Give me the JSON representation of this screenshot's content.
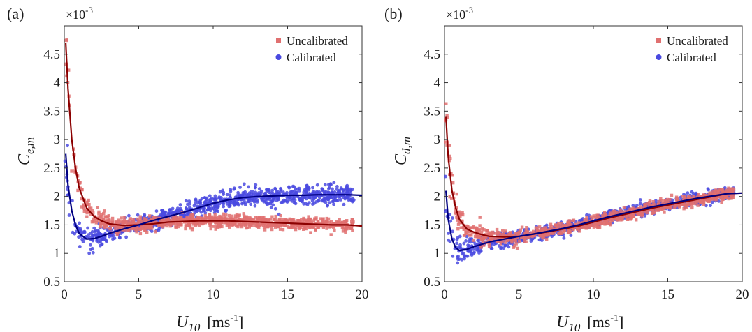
{
  "figure": {
    "panels": [
      {
        "label": "(a)",
        "multiplier": "×10",
        "multiplier_exp": "-3",
        "ylabel_var": "C",
        "ylabel_sub": "e,m",
        "xlabel_var": "U",
        "xlabel_sub": "10",
        "xlabel_unit_open": "[ms",
        "xlabel_unit_exp": "-1",
        "xlabel_unit_close": "]"
      },
      {
        "label": "(b)",
        "multiplier": "×10",
        "multiplier_exp": "-3",
        "ylabel_var": "C",
        "ylabel_sub": "d,m",
        "xlabel_var": "U",
        "xlabel_sub": "10",
        "xlabel_unit_open": "[ms",
        "xlabel_unit_exp": "-1",
        "xlabel_unit_close": "]"
      }
    ],
    "colors": {
      "uncalibrated_points": "#e07070",
      "uncalibrated_fit": "#8b0000",
      "calibrated_points": "#4a4ae0",
      "calibrated_fit": "#000080"
    }
  },
  "chart_data": [
    {
      "type": "scatter",
      "xlim": [
        0,
        20
      ],
      "ylim": [
        0.5,
        5
      ],
      "y_scale_note": "×10^-3",
      "xticks": [
        "0",
        "5",
        "10",
        "15",
        "20"
      ],
      "yticks": [
        "0.5",
        "1",
        "1.5",
        "2",
        "2.5",
        "3",
        "3.5",
        "4",
        "4.5"
      ],
      "legend_position": "top-right",
      "series": [
        {
          "name": "Uncalibrated",
          "marker": "square",
          "fit": {
            "x": [
              0.1,
              0.25,
              0.5,
              0.75,
              1,
              1.5,
              2,
              2.5,
              3,
              4,
              5,
              6,
              7,
              8,
              9,
              10,
              11,
              12,
              13,
              14,
              15,
              16,
              17,
              18,
              19,
              20
            ],
            "y": [
              4.7,
              3.9,
              3.0,
              2.5,
              2.15,
              1.8,
              1.65,
              1.57,
              1.52,
              1.49,
              1.5,
              1.52,
              1.55,
              1.56,
              1.57,
              1.57,
              1.57,
              1.56,
              1.55,
              1.54,
              1.53,
              1.52,
              1.51,
              1.5,
              1.5,
              1.48
            ]
          }
        },
        {
          "name": "Calibrated",
          "marker": "circle",
          "fit": {
            "x": [
              0.1,
              0.25,
              0.5,
              0.75,
              1,
              1.5,
              2,
              2.5,
              3,
              4,
              5,
              6,
              7,
              8,
              9,
              10,
              11,
              12,
              13,
              14,
              15,
              16,
              17,
              18,
              19,
              20
            ],
            "y": [
              2.75,
              2.2,
              1.75,
              1.5,
              1.35,
              1.25,
              1.26,
              1.3,
              1.35,
              1.43,
              1.5,
              1.58,
              1.65,
              1.72,
              1.8,
              1.88,
              1.94,
              1.98,
              2.0,
              2.01,
              2.02,
              2.02,
              2.03,
              2.03,
              2.03,
              2.02
            ]
          }
        }
      ]
    },
    {
      "type": "scatter",
      "xlim": [
        0,
        20
      ],
      "ylim": [
        0.5,
        5
      ],
      "y_scale_note": "×10^-3",
      "xticks": [
        "0",
        "5",
        "10",
        "15",
        "20"
      ],
      "yticks": [
        "0.5",
        "1",
        "1.5",
        "2",
        "2.5",
        "3",
        "3.5",
        "4",
        "4.5"
      ],
      "legend_position": "top-right",
      "series": [
        {
          "name": "Uncalibrated",
          "marker": "square",
          "fit": {
            "x": [
              0.1,
              0.25,
              0.5,
              0.75,
              1,
              1.5,
              2,
              2.5,
              3,
              4,
              5,
              6,
              7,
              8,
              9,
              10,
              11,
              12,
              13,
              14,
              15,
              16,
              17,
              18,
              19,
              20
            ],
            "y": [
              3.4,
              2.7,
              2.1,
              1.8,
              1.6,
              1.43,
              1.37,
              1.33,
              1.3,
              1.29,
              1.3,
              1.34,
              1.38,
              1.43,
              1.48,
              1.55,
              1.62,
              1.68,
              1.74,
              1.8,
              1.85,
              1.9,
              1.95,
              2.0,
              2.05,
              2.06
            ]
          }
        },
        {
          "name": "Calibrated",
          "marker": "circle",
          "fit": {
            "x": [
              0.1,
              0.25,
              0.5,
              0.75,
              1,
              1.5,
              2,
              2.5,
              3,
              4,
              5,
              6,
              7,
              8,
              9,
              10,
              11,
              12,
              13,
              14,
              15,
              16,
              17,
              18,
              19,
              20
            ],
            "y": [
              2.1,
              1.6,
              1.25,
              1.1,
              1.05,
              1.07,
              1.12,
              1.16,
              1.2,
              1.25,
              1.3,
              1.34,
              1.39,
              1.44,
              1.5,
              1.57,
              1.64,
              1.7,
              1.76,
              1.82,
              1.87,
              1.92,
              1.97,
              2.01,
              2.05,
              2.06
            ]
          }
        }
      ]
    }
  ]
}
